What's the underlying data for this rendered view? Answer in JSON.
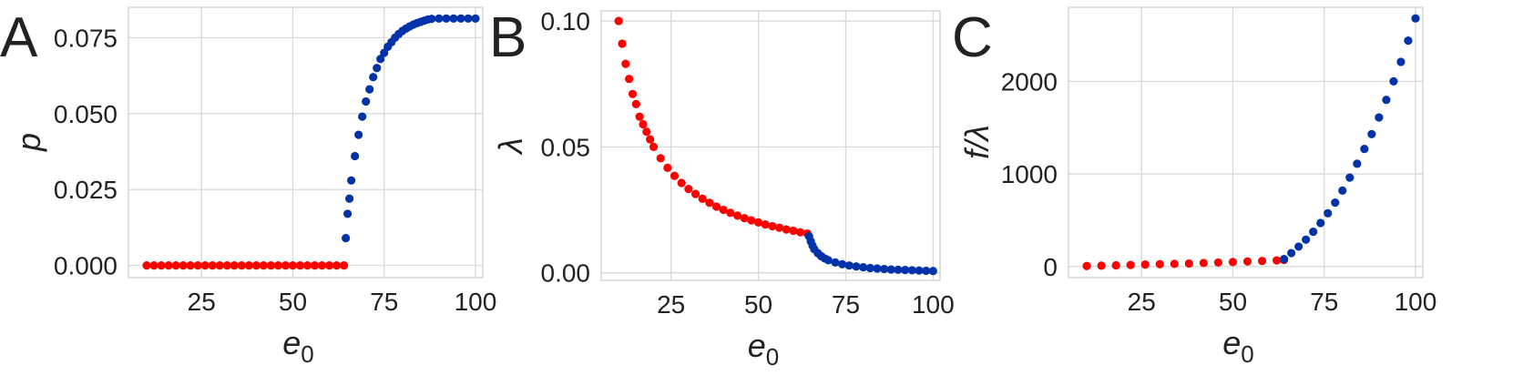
{
  "chart_data": [
    {
      "type": "scatter",
      "panel_label": "A",
      "xlabel": "e",
      "xlabel_sub": "0",
      "ylabel": "p",
      "xlim": [
        5,
        102
      ],
      "ylim": [
        -0.004,
        0.085
      ],
      "xticks": [
        25,
        50,
        75,
        100
      ],
      "xtick_labels": [
        "25",
        "50",
        "75",
        "100"
      ],
      "yticks": [
        0.0,
        0.025,
        0.05,
        0.075
      ],
      "ytick_labels": [
        "0.000",
        "0.025",
        "0.050",
        "0.075"
      ],
      "grid": true,
      "series": [
        {
          "color": "#ff0000",
          "x": [
            10,
            12,
            14,
            16,
            18,
            20,
            22,
            24,
            26,
            28,
            30,
            32,
            34,
            36,
            38,
            40,
            42,
            44,
            46,
            48,
            50,
            52,
            54,
            56,
            58,
            60,
            62,
            64
          ],
          "y": [
            0,
            0,
            0,
            0,
            0,
            0,
            0,
            0,
            0,
            0,
            0,
            0,
            0,
            0,
            0,
            0,
            0,
            0,
            0,
            0,
            0,
            0,
            0,
            0,
            0,
            0,
            0,
            0
          ]
        },
        {
          "color": "#0033aa",
          "x": [
            64.5,
            65,
            65.5,
            66,
            67,
            68,
            69,
            70,
            71,
            72,
            73,
            74,
            75,
            76,
            77,
            78,
            79,
            80,
            81,
            82,
            83,
            84,
            85,
            86,
            87,
            88,
            90,
            92,
            94,
            96,
            98,
            100
          ],
          "y": [
            0.009,
            0.017,
            0.022,
            0.028,
            0.036,
            0.043,
            0.049,
            0.054,
            0.058,
            0.062,
            0.065,
            0.068,
            0.07,
            0.072,
            0.0735,
            0.075,
            0.0762,
            0.0772,
            0.078,
            0.0787,
            0.0793,
            0.0798,
            0.0802,
            0.0806,
            0.081,
            0.0812,
            0.0813,
            0.0813,
            0.0813,
            0.0813,
            0.0813,
            0.0813
          ]
        }
      ]
    },
    {
      "type": "scatter",
      "panel_label": "B",
      "xlabel": "e",
      "xlabel_sub": "0",
      "ylabel": "λ",
      "xlim": [
        5,
        102
      ],
      "ylim": [
        -0.003,
        0.104
      ],
      "xticks": [
        25,
        50,
        75,
        100
      ],
      "xtick_labels": [
        "25",
        "50",
        "75",
        "100"
      ],
      "yticks": [
        0.0,
        0.05,
        0.1
      ],
      "ytick_labels": [
        "0.00",
        "0.05",
        "0.10"
      ],
      "grid": true,
      "series": [
        {
          "color": "#ff0000",
          "x": [
            10,
            11,
            12,
            13,
            14,
            15,
            16,
            17,
            18,
            19,
            20,
            22,
            24,
            26,
            28,
            30,
            32,
            34,
            36,
            38,
            40,
            42,
            44,
            46,
            48,
            50,
            52,
            54,
            56,
            58,
            60,
            62,
            64
          ],
          "y": [
            0.1,
            0.091,
            0.083,
            0.077,
            0.071,
            0.067,
            0.062,
            0.059,
            0.056,
            0.053,
            0.05,
            0.0455,
            0.0417,
            0.0385,
            0.0357,
            0.0333,
            0.0313,
            0.0294,
            0.0278,
            0.0263,
            0.025,
            0.0238,
            0.0227,
            0.0217,
            0.0208,
            0.02,
            0.0192,
            0.0185,
            0.0179,
            0.0172,
            0.0167,
            0.0161,
            0.0156
          ]
        },
        {
          "color": "#0033aa",
          "x": [
            64.5,
            65,
            65.5,
            66,
            67,
            68,
            69,
            70,
            72,
            74,
            76,
            78,
            80,
            82,
            84,
            86,
            88,
            90,
            92,
            94,
            96,
            98,
            100
          ],
          "y": [
            0.0145,
            0.0125,
            0.0108,
            0.0094,
            0.0078,
            0.0066,
            0.0057,
            0.005,
            0.0041,
            0.0034,
            0.0029,
            0.0025,
            0.0022,
            0.0019,
            0.0017,
            0.0015,
            0.0013,
            0.0012,
            0.0011,
            0.001,
            0.0009,
            0.0008,
            0.0007
          ]
        }
      ]
    },
    {
      "type": "scatter",
      "panel_label": "C",
      "xlabel": "e",
      "xlabel_sub": "0",
      "ylabel": "f/λ",
      "xlim": [
        5,
        102
      ],
      "ylim": [
        -120,
        2800
      ],
      "xticks": [
        25,
        50,
        75,
        100
      ],
      "xtick_labels": [
        "25",
        "50",
        "75",
        "100"
      ],
      "yticks": [
        0,
        1000,
        2000
      ],
      "ytick_labels": [
        "0",
        "1000",
        "2000"
      ],
      "grid": true,
      "series": [
        {
          "color": "#ff0000",
          "x": [
            10,
            14,
            18,
            22,
            26,
            30,
            34,
            38,
            42,
            46,
            50,
            54,
            58,
            62,
            64
          ],
          "y": [
            5,
            9,
            13,
            17,
            21,
            25,
            29,
            33,
            38,
            43,
            48,
            54,
            60,
            66,
            70
          ]
        },
        {
          "color": "#0033aa",
          "x": [
            64,
            66,
            68,
            70,
            72,
            74,
            76,
            78,
            80,
            82,
            84,
            86,
            88,
            90,
            92,
            94,
            96,
            98,
            100
          ],
          "y": [
            80,
            145,
            215,
            290,
            375,
            470,
            575,
            690,
            820,
            960,
            1110,
            1270,
            1430,
            1610,
            1800,
            2000,
            2210,
            2440,
            2680
          ]
        }
      ]
    }
  ]
}
